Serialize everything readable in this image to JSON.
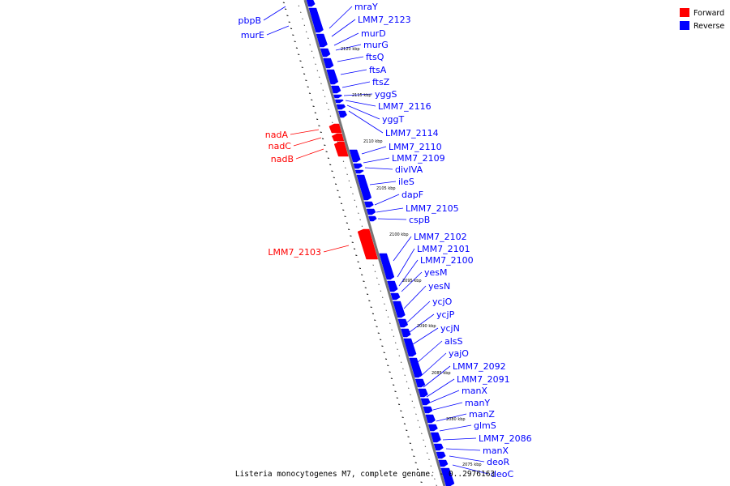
{
  "caption": "Listeria monocytogenes M7, complete genome. - 0..2976163",
  "legend": [
    {
      "label": "Forward",
      "color": "#ff0000"
    },
    {
      "label": "Reverse",
      "color": "#0000ff"
    }
  ],
  "colors": {
    "forward": "#ff0000",
    "reverse": "#0000ff",
    "backbone": "#777777"
  },
  "scale_labels": [
    "2120 kbp",
    "2115 kbp",
    "2110 kbp",
    "2105 kbp",
    "2100 kbp",
    "2095 kbp",
    "2090 kbp",
    "2085 kbp",
    "2080 kbp",
    "2075 kbp"
  ],
  "reverse_genes": [
    "mraY",
    "LMM7_2123",
    "murD",
    "murG",
    "ftsQ",
    "ftsA",
    "ftsZ",
    "yggS",
    "LMM7_2116",
    "yggT",
    "LMM7_2114",
    "LMM7_2110",
    "LMM7_2109",
    "divIVA",
    "ileS",
    "dapF",
    "LMM7_2105",
    "cspB",
    "LMM7_2102",
    "LMM7_2101",
    "LMM7_2100",
    "yesM",
    "yesN",
    "ycjO",
    "ycjP",
    "ycjN",
    "alsS",
    "yajO",
    "LMM7_2092",
    "LMM7_2091",
    "manX",
    "manY",
    "manZ",
    "glmS",
    "LMM7_2086",
    "manX",
    "deoR",
    "deoC"
  ],
  "left_reverse_genes": [
    "pbpB",
    "murE"
  ],
  "forward_genes": [
    "nadA",
    "nadC",
    "nadB",
    "LMM7_2103"
  ]
}
